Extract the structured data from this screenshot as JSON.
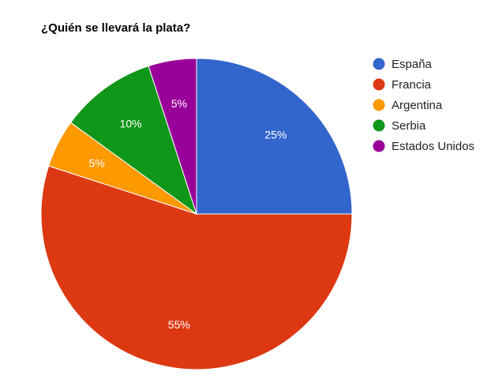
{
  "chart_data": {
    "type": "pie",
    "title": "¿Quién se llevará la plata?",
    "categories": [
      "España",
      "Francia",
      "Argentina",
      "Serbia",
      "Estados Unidos"
    ],
    "values": [
      25,
      55,
      5,
      10,
      5
    ],
    "labels": [
      "25%",
      "55%",
      "5%",
      "10%",
      "5%"
    ],
    "colors": [
      "#3366cc",
      "#dc3912",
      "#ff9900",
      "#109618",
      "#990099"
    ],
    "start_angle": "12 o'clock",
    "direction": "clockwise",
    "legend": "right"
  }
}
